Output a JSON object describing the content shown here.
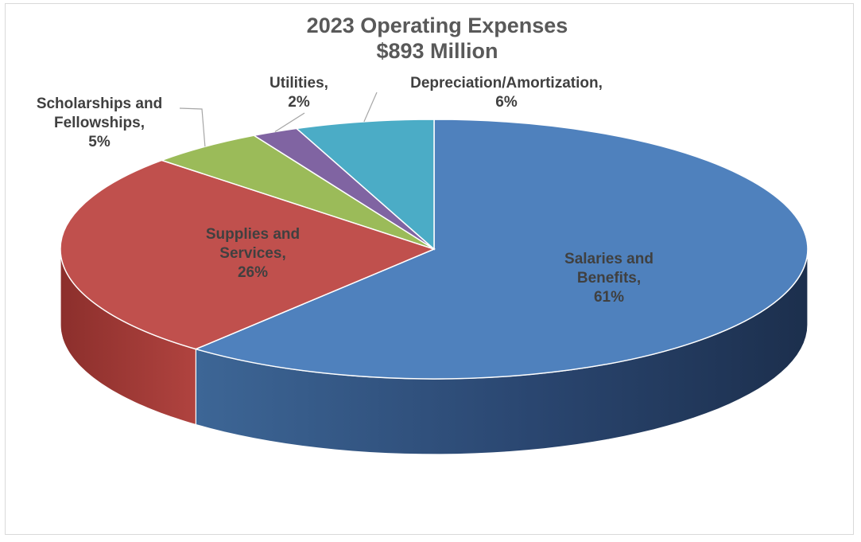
{
  "chart_data": {
    "type": "pie",
    "title": "2023 Operating Expenses",
    "subtitle": "$893 Million",
    "slices": [
      {
        "name": "Salaries and Benefits",
        "value": 61,
        "label_lines": [
          "Salaries and",
          "Benefits,",
          "61%"
        ],
        "color": "#4f81bd"
      },
      {
        "name": "Supplies and Services",
        "value": 26,
        "label_lines": [
          "Supplies and",
          "Services,",
          "26%"
        ],
        "color": "#c0504d"
      },
      {
        "name": "Scholarships and Fellowships",
        "value": 5,
        "label_lines": [
          "Scholarships and",
          "Fellowships,",
          "5%"
        ],
        "color": "#9bbb59"
      },
      {
        "name": "Utilities",
        "value": 2,
        "label_lines": [
          "Utilities,",
          "2%"
        ],
        "color": "#8064a2"
      },
      {
        "name": "Depreciation/Amortization",
        "value": 6,
        "label_lines": [
          "Depreciation/Amortization,",
          "6%"
        ],
        "color": "#4bacc6"
      }
    ],
    "legend": "none",
    "view": "3d"
  }
}
